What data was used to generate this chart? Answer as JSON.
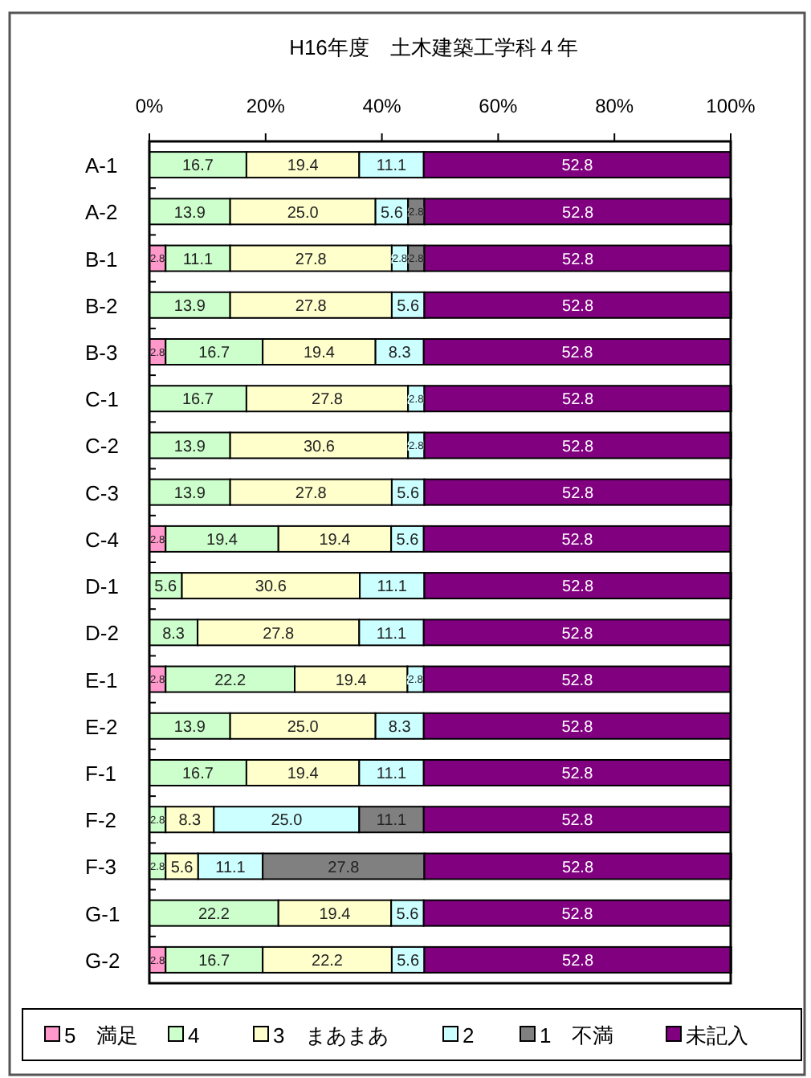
{
  "chart_data": {
    "type": "bar",
    "orientation": "horizontal",
    "stacked": true,
    "title": "H16年度　土木建築工学科４年",
    "categories": [
      "A-1",
      "A-2",
      "B-1",
      "B-2",
      "B-3",
      "C-1",
      "C-2",
      "C-3",
      "C-4",
      "D-1",
      "D-2",
      "E-1",
      "E-2",
      "F-1",
      "F-2",
      "F-3",
      "G-1",
      "G-2"
    ],
    "series": [
      {
        "name": "5　満足",
        "color": "#ff99cc",
        "values": [
          0,
          0,
          2.8,
          0,
          2.8,
          0,
          0,
          0,
          2.8,
          0,
          0,
          2.8,
          0,
          0,
          0,
          0,
          0,
          2.8
        ],
        "value_labels": [
          null,
          null,
          "2.8",
          null,
          "2.8",
          null,
          null,
          null,
          "2.8",
          null,
          null,
          "2.8",
          null,
          null,
          null,
          null,
          null,
          "2.8"
        ]
      },
      {
        "name": "4",
        "color": "#ccffcc",
        "values": [
          16.7,
          13.9,
          11.1,
          13.9,
          16.7,
          16.7,
          13.9,
          13.9,
          19.4,
          5.6,
          8.3,
          22.2,
          13.9,
          16.7,
          2.8,
          2.8,
          22.2,
          16.7
        ],
        "value_labels": [
          "16.7",
          "13.9",
          "11.1",
          "13.9",
          "16.7",
          "16.7",
          "13.9",
          "13.9",
          "19.4",
          "5.6",
          "8.3",
          "22.2",
          "13.9",
          "16.7",
          "2.8",
          "2.8",
          "22.2",
          "16.7"
        ]
      },
      {
        "name": "3　まあまあ",
        "color": "#ffffcc",
        "values": [
          19.4,
          25.0,
          27.8,
          27.8,
          19.4,
          27.8,
          30.6,
          27.8,
          19.4,
          30.6,
          27.8,
          19.4,
          25.0,
          19.4,
          8.3,
          5.6,
          19.4,
          22.2
        ],
        "value_labels": [
          "19.4",
          "25.0",
          "27.8",
          "27.8",
          "19.4",
          "27.8",
          "30.6",
          "27.8",
          "19.4",
          "30.6",
          "27.8",
          "19.4",
          "25.0",
          "19.4",
          "8.3",
          "5.6",
          "19.4",
          "22.2"
        ]
      },
      {
        "name": "2",
        "color": "#ccffff",
        "values": [
          11.1,
          5.6,
          2.8,
          5.6,
          8.3,
          2.8,
          2.8,
          5.6,
          5.6,
          11.1,
          11.1,
          2.8,
          8.3,
          11.1,
          25.0,
          11.1,
          5.6,
          5.6
        ],
        "value_labels": [
          "11.1",
          "5.6",
          "2.8",
          "5.6",
          "8.3",
          "2.8",
          "2.8",
          "5.6",
          "5.6",
          "11.1",
          "11.1",
          "2.8",
          "8.3",
          "11.1",
          "25.0",
          "11.1",
          "5.6",
          "5.6"
        ]
      },
      {
        "name": "1　不満",
        "color": "#808080",
        "values": [
          0,
          2.8,
          2.8,
          0,
          0,
          0,
          0,
          0,
          0,
          0,
          0,
          0,
          0,
          0,
          11.1,
          27.8,
          0,
          0
        ],
        "value_labels": [
          null,
          "2.8",
          "2.8",
          null,
          null,
          null,
          null,
          null,
          null,
          null,
          null,
          null,
          null,
          null,
          "11.1",
          "27.8",
          null,
          null
        ]
      },
      {
        "name": "未記入",
        "color": "#800080",
        "values": [
          52.8,
          52.8,
          52.8,
          52.8,
          52.8,
          52.8,
          52.8,
          52.8,
          52.8,
          52.8,
          52.8,
          52.8,
          52.8,
          52.8,
          52.8,
          52.8,
          52.8,
          52.8
        ],
        "value_labels": [
          "52.8",
          "52.8",
          "52.8",
          "52.8",
          "52.8",
          "52.8",
          "52.8",
          "52.8",
          "52.8",
          "52.8",
          "52.8",
          "52.8",
          "52.8",
          "52.8",
          "52.8",
          "52.8",
          "52.8",
          "52.8"
        ]
      }
    ],
    "xlim": [
      0,
      100
    ],
    "xticks": [
      {
        "value": 0,
        "label": "0%"
      },
      {
        "value": 20,
        "label": "20%"
      },
      {
        "value": 40,
        "label": "40%"
      },
      {
        "value": 60,
        "label": "60%"
      },
      {
        "value": 80,
        "label": "80%"
      },
      {
        "value": 100,
        "label": "100%"
      }
    ],
    "grid": false,
    "legend": "bottom"
  }
}
